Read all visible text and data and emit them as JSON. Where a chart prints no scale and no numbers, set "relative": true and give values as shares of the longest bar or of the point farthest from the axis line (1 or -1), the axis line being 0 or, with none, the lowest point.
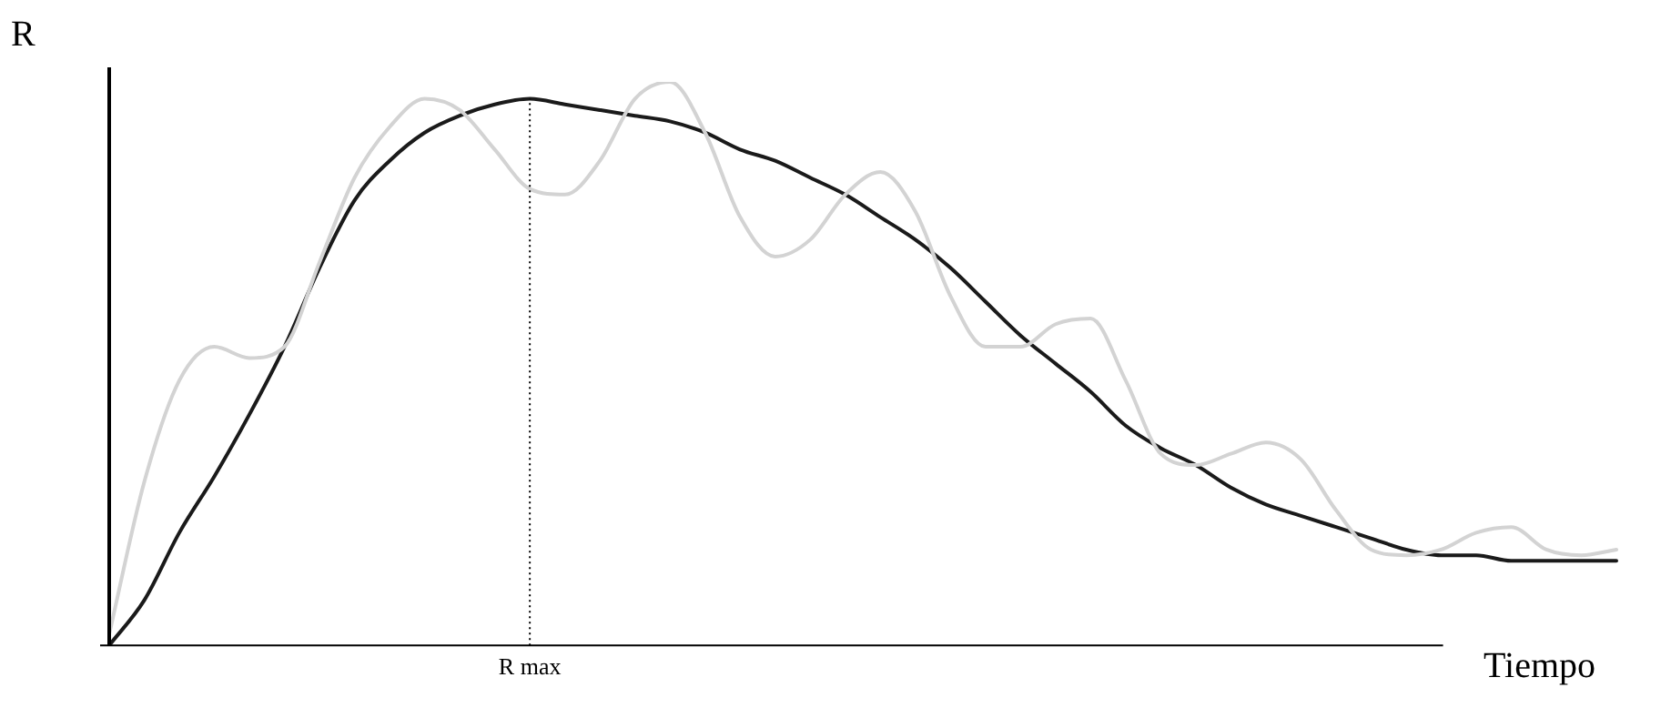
{
  "chart_data": {
    "type": "line",
    "relative": true,
    "xlabel": "Tiempo",
    "ylabel": "R",
    "grid": false,
    "marker": "none",
    "line_style": "solid",
    "categories": [
      null,
      null,
      null,
      null,
      null,
      null,
      null,
      null,
      null,
      null,
      null,
      null,
      null,
      null,
      null,
      null,
      null,
      null,
      null,
      null,
      null,
      null,
      null,
      null,
      null,
      null,
      null,
      null,
      null,
      null,
      null,
      null,
      null,
      null,
      null,
      null,
      null,
      null,
      null,
      null,
      null,
      null,
      null,
      null
    ],
    "series": [
      {
        "color": "#d3d3d3",
        "values": [
          0.02,
          0.29,
          0.47,
          0.53,
          0.51,
          0.53,
          0.68,
          0.83,
          0.92,
          0.97,
          0.95,
          0.88,
          0.81,
          0.8,
          0.86,
          0.97,
          1.0,
          0.91,
          0.76,
          0.69,
          0.72,
          0.8,
          0.84,
          0.77,
          0.62,
          0.53,
          0.53,
          0.57,
          0.58,
          0.47,
          0.34,
          0.32,
          0.34,
          0.36,
          0.33,
          0.24,
          0.17,
          0.16,
          0.17,
          0.2,
          0.21,
          0.17,
          0.16,
          0.17
        ]
      },
      {
        "color": "#1a1a1a",
        "values": [
          0,
          0.08,
          0.2,
          0.3,
          0.41,
          0.53,
          0.67,
          0.79,
          0.86,
          0.91,
          0.94,
          0.96,
          0.97,
          0.96,
          0.95,
          0.94,
          0.93,
          0.91,
          0.88,
          0.86,
          0.83,
          0.8,
          0.76,
          0.72,
          0.67,
          0.61,
          0.55,
          0.5,
          0.45,
          0.39,
          0.35,
          0.32,
          0.28,
          0.25,
          0.23,
          0.21,
          0.19,
          0.17,
          0.16,
          0.16,
          0.15,
          0.15,
          0.15,
          0.15
        ]
      }
    ],
    "annotations": [
      "R max"
    ]
  }
}
